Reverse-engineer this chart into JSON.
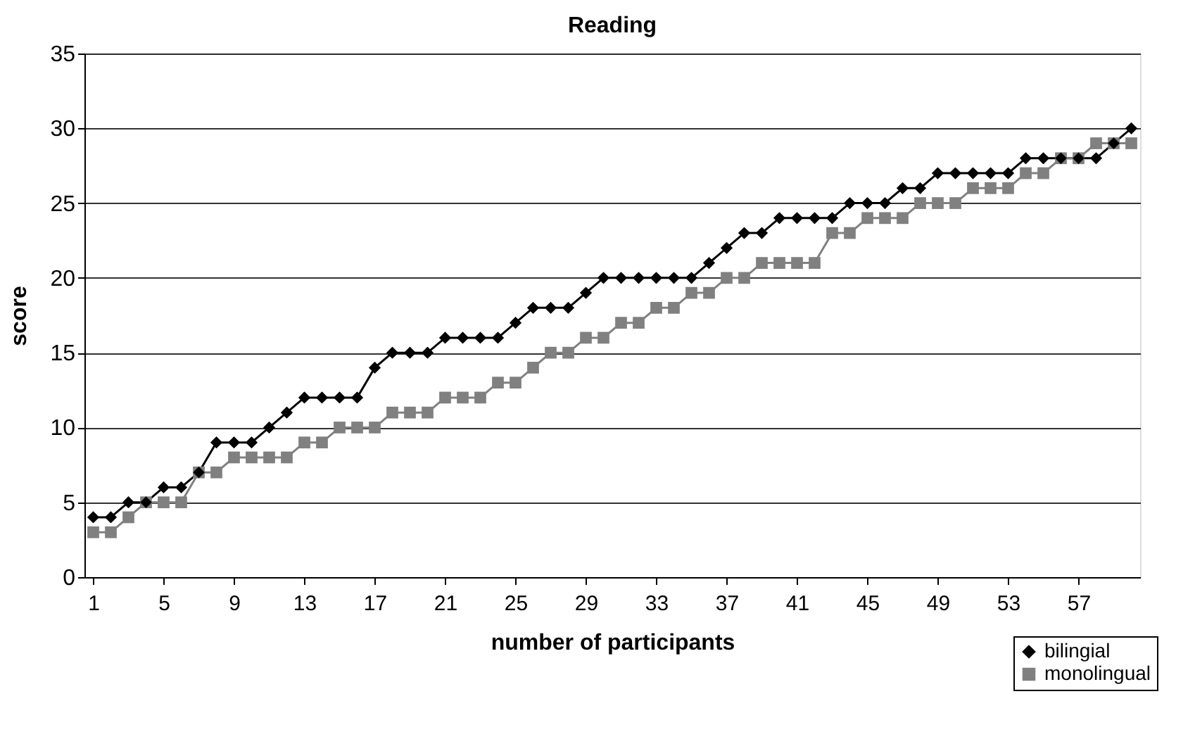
{
  "chart_data": {
    "type": "line",
    "title": "Reading",
    "xlabel": "number of participants",
    "ylabel": "score",
    "categories": [
      "1",
      null,
      null,
      null,
      "5",
      null,
      null,
      null,
      "9",
      null,
      null,
      null,
      "13",
      null,
      null,
      null,
      "17",
      null,
      null,
      null,
      "21",
      null,
      null,
      null,
      "25",
      null,
      null,
      null,
      "29",
      null,
      null,
      null,
      "33",
      null,
      null,
      null,
      "37",
      null,
      null,
      null,
      "41",
      null,
      null,
      null,
      "45",
      null,
      null,
      null,
      "49",
      null,
      null,
      null,
      "53",
      null,
      null,
      null,
      "57",
      null,
      null,
      null
    ],
    "series": [
      {
        "name": "bilingial",
        "color": "#000000",
        "marker": "diamond",
        "values": [
          4,
          4,
          5,
          5,
          6,
          6,
          7,
          9,
          9,
          9,
          10,
          11,
          12,
          12,
          12,
          12,
          14,
          15,
          15,
          15,
          16,
          16,
          16,
          16,
          17,
          18,
          18,
          18,
          19,
          20,
          20,
          20,
          20,
          20,
          20,
          21,
          22,
          23,
          23,
          24,
          24,
          24,
          24,
          25,
          25,
          25,
          26,
          26,
          27,
          27,
          27,
          27,
          27,
          28,
          28,
          28,
          28,
          28,
          29,
          30
        ]
      },
      {
        "name": "monolingual",
        "color": "#808080",
        "marker": "square",
        "values": [
          3,
          3,
          4,
          5,
          5,
          5,
          7,
          7,
          8,
          8,
          8,
          8,
          9,
          9,
          10,
          10,
          10,
          11,
          11,
          11,
          12,
          12,
          12,
          13,
          13,
          14,
          15,
          15,
          16,
          16,
          17,
          17,
          18,
          18,
          19,
          19,
          20,
          20,
          21,
          21,
          21,
          21,
          23,
          23,
          24,
          24,
          24,
          25,
          25,
          25,
          26,
          26,
          26,
          27,
          27,
          28,
          28,
          29,
          29,
          29
        ]
      }
    ],
    "ylim": [
      0,
      35
    ],
    "yticks": [
      0,
      5,
      10,
      15,
      20,
      25,
      30,
      35
    ],
    "grid": "y",
    "legend": "bottom right",
    "line_style": "solid"
  }
}
